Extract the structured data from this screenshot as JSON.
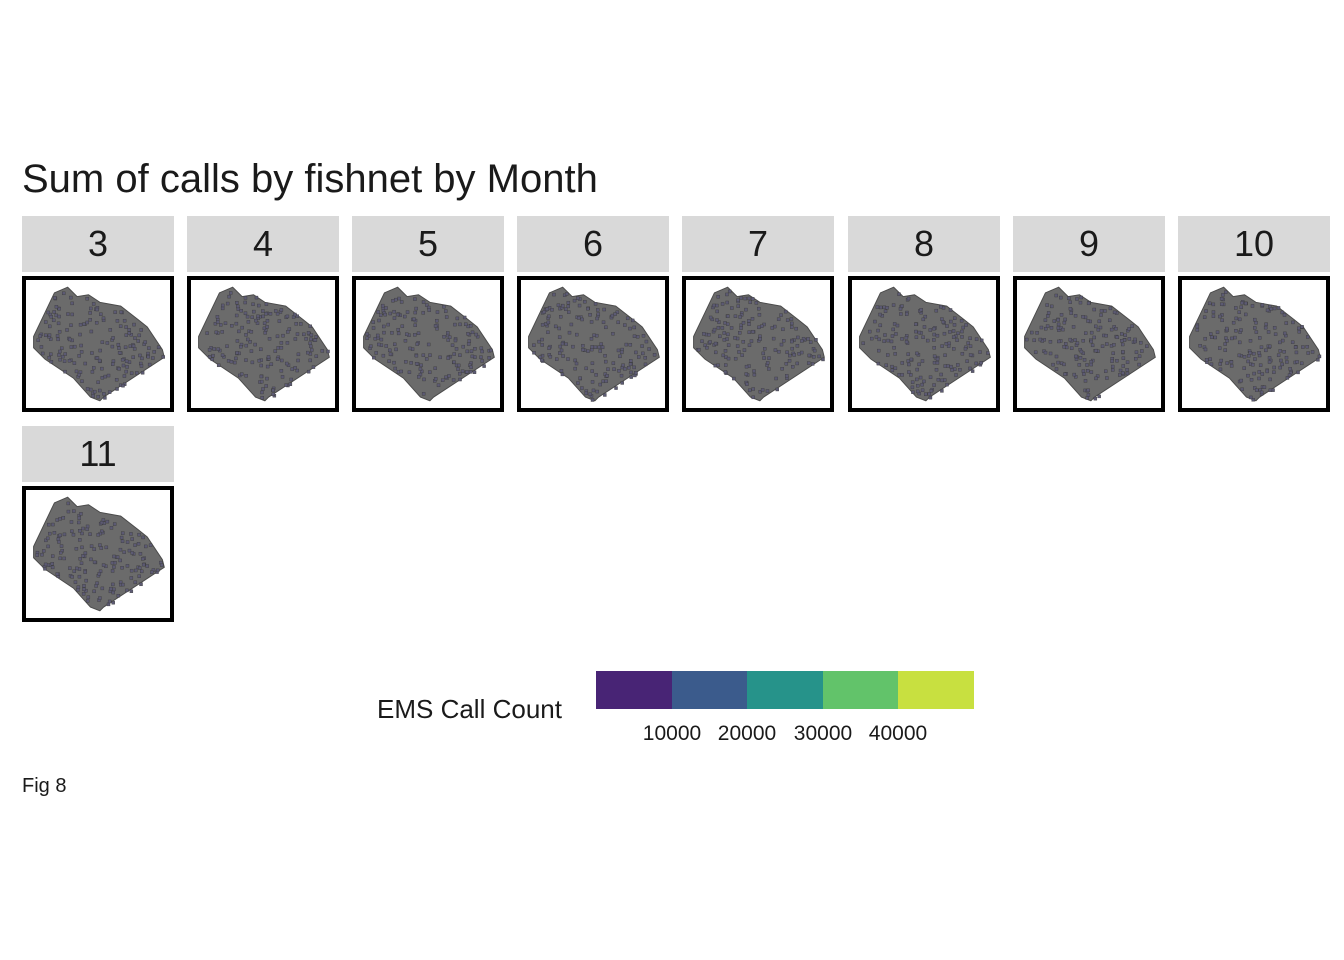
{
  "title": "Sum of calls by fishnet by Month",
  "panels": [
    "3",
    "4",
    "5",
    "6",
    "7",
    "8",
    "9",
    "10",
    "11"
  ],
  "legend": {
    "title": "EMS Call Count",
    "colors": [
      "#482475",
      "#3b5b8c",
      "#26938a",
      "#62c36a",
      "#c8e040"
    ],
    "ticks": [
      "10000",
      "20000",
      "30000",
      "40000"
    ]
  },
  "map_style": {
    "fill": "#6b6b6b",
    "outline": "#4a4a4a",
    "cell": "#5c5a73"
  },
  "caption": "Fig 8"
}
